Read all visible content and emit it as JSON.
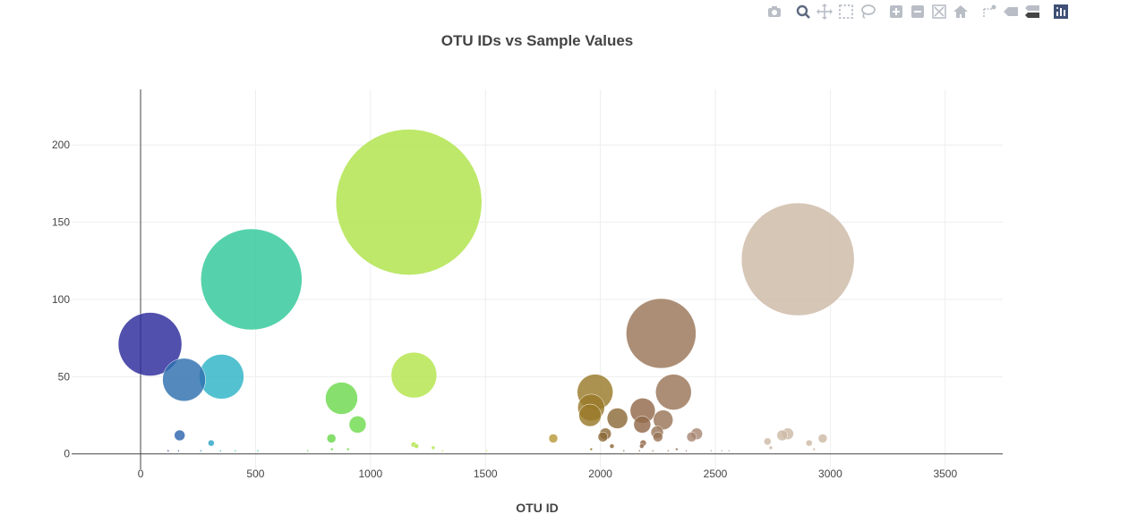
{
  "modebar": {
    "buttons": [
      {
        "icon": "camera-icon",
        "label": "Download plot as a png"
      },
      {
        "icon": "zoom-icon",
        "label": "Zoom",
        "active": true
      },
      {
        "icon": "pan-icon",
        "label": "Pan"
      },
      {
        "icon": "box-select-icon",
        "label": "Box Select"
      },
      {
        "icon": "lasso-select-icon",
        "label": "Lasso Select"
      },
      {
        "icon": "zoom-in-icon",
        "label": "Zoom in"
      },
      {
        "icon": "zoom-out-icon",
        "label": "Zoom out"
      },
      {
        "icon": "autoscale-icon",
        "label": "Autoscale"
      },
      {
        "icon": "home-icon",
        "label": "Reset axes"
      },
      {
        "icon": "spike-lines-icon",
        "label": "Toggle Spike Lines"
      },
      {
        "icon": "hover-closest-icon",
        "label": "Show closest data on hover"
      },
      {
        "icon": "hover-compare-icon",
        "label": "Compare data on hover"
      },
      {
        "icon": "plotly-logo-icon",
        "label": "Produced with Plotly"
      }
    ]
  },
  "colors": {
    "grid": "#eeeeee",
    "axis": "#444444",
    "icon": "#b9bec6",
    "icon_active": "#5e6a80"
  },
  "chart_data": {
    "type": "scatter",
    "mode": "bubble",
    "title": "OTU IDs vs Sample Values",
    "xlabel": "OTU ID",
    "ylabel": "",
    "xlim": [
      -300,
      3750
    ],
    "ylim": [
      -10,
      236
    ],
    "xticks": [
      0,
      500,
      1000,
      1500,
      2000,
      2500,
      3000,
      3500
    ],
    "yticks": [
      0,
      50,
      100,
      150,
      200
    ],
    "grid": true,
    "legend": "none",
    "marker_size_encodes": "sample value",
    "points": [
      {
        "x": 41,
        "y": 71,
        "color": "#2b2a9a"
      },
      {
        "x": 189,
        "y": 48,
        "color": "#2e6fb0"
      },
      {
        "x": 352,
        "y": 50,
        "color": "#2db3c6"
      },
      {
        "x": 482,
        "y": 113,
        "color": "#2fc898"
      },
      {
        "x": 170,
        "y": 12,
        "color": "#2e64ad"
      },
      {
        "x": 307,
        "y": 7,
        "color": "#2ea3c4"
      },
      {
        "x": 874,
        "y": 36,
        "color": "#6cd94d"
      },
      {
        "x": 944,
        "y": 19,
        "color": "#6fdb4e"
      },
      {
        "x": 830,
        "y": 10,
        "color": "#69d84c"
      },
      {
        "x": 1167,
        "y": 163,
        "color": "#aee348"
      },
      {
        "x": 1189,
        "y": 51,
        "color": "#b3e44a"
      },
      {
        "x": 1795,
        "y": 10,
        "color": "#b8983a"
      },
      {
        "x": 1977,
        "y": 40,
        "color": "#9a7a2a"
      },
      {
        "x": 1960,
        "y": 30,
        "color": "#9a7a2a"
      },
      {
        "x": 1955,
        "y": 25,
        "color": "#9a7a2a"
      },
      {
        "x": 2011,
        "y": 11,
        "color": "#8c6a38"
      },
      {
        "x": 2022,
        "y": 13,
        "color": "#8c6a38"
      },
      {
        "x": 2074,
        "y": 23,
        "color": "#8c6a38"
      },
      {
        "x": 2184,
        "y": 28,
        "color": "#93694a"
      },
      {
        "x": 2182,
        "y": 19,
        "color": "#93694a"
      },
      {
        "x": 2186,
        "y": 7,
        "color": "#93694a"
      },
      {
        "x": 2180,
        "y": 5,
        "color": "#93694a"
      },
      {
        "x": 2264,
        "y": 78,
        "color": "#9a7558"
      },
      {
        "x": 2318,
        "y": 40,
        "color": "#9a7558"
      },
      {
        "x": 2273,
        "y": 22,
        "color": "#9a7558"
      },
      {
        "x": 2247,
        "y": 14,
        "color": "#9a7558"
      },
      {
        "x": 2250,
        "y": 11,
        "color": "#9a7558"
      },
      {
        "x": 2419,
        "y": 13,
        "color": "#a88673"
      },
      {
        "x": 2397,
        "y": 11,
        "color": "#a88673"
      },
      {
        "x": 2859,
        "y": 126,
        "color": "#cdb9a6"
      },
      {
        "x": 2815,
        "y": 13,
        "color": "#cdb9a6"
      },
      {
        "x": 2791,
        "y": 12,
        "color": "#cdb9a6"
      },
      {
        "x": 2727,
        "y": 8,
        "color": "#cdb9a6"
      },
      {
        "x": 2967,
        "y": 10,
        "color": "#cdb9a6"
      },
      {
        "x": 2908,
        "y": 7,
        "color": "#cdb9a6"
      },
      {
        "x": 1188,
        "y": 6,
        "color": "#b3e44a"
      },
      {
        "x": 1200,
        "y": 5,
        "color": "#b3e44a"
      },
      {
        "x": 1273,
        "y": 4,
        "color": "#b3e44a"
      },
      {
        "x": 2050,
        "y": 5,
        "color": "#8c6a38"
      },
      {
        "x": 2741,
        "y": 4,
        "color": "#cdb9a6"
      },
      {
        "x": 832,
        "y": 3,
        "color": "#69d84c"
      },
      {
        "x": 902,
        "y": 3,
        "color": "#6fdb4e"
      },
      {
        "x": 1960,
        "y": 3,
        "color": "#9a7a2a"
      },
      {
        "x": 2332,
        "y": 3,
        "color": "#9a7558"
      },
      {
        "x": 2929,
        "y": 3,
        "color": "#cdb9a6"
      },
      {
        "x": 120,
        "y": 2,
        "color": "#2b2a9a"
      },
      {
        "x": 165,
        "y": 2,
        "color": "#2e64ad"
      },
      {
        "x": 262,
        "y": 2,
        "color": "#2e8fbc"
      },
      {
        "x": 348,
        "y": 2,
        "color": "#2db3c6"
      },
      {
        "x": 412,
        "y": 2,
        "color": "#2fc898"
      },
      {
        "x": 510,
        "y": 2,
        "color": "#2fc898"
      },
      {
        "x": 727,
        "y": 2,
        "color": "#5fd35a"
      },
      {
        "x": 1313,
        "y": 2,
        "color": "#b3e44a"
      },
      {
        "x": 1505,
        "y": 2,
        "color": "#c9d24c"
      },
      {
        "x": 2102,
        "y": 2,
        "color": "#8c6a38"
      },
      {
        "x": 2170,
        "y": 2,
        "color": "#93694a"
      },
      {
        "x": 2228,
        "y": 2,
        "color": "#9a7558"
      },
      {
        "x": 2295,
        "y": 2,
        "color": "#9a7558"
      },
      {
        "x": 2374,
        "y": 2,
        "color": "#a88673"
      },
      {
        "x": 2482,
        "y": 2,
        "color": "#b49a88"
      },
      {
        "x": 2528,
        "y": 2,
        "color": "#bba693"
      },
      {
        "x": 2560,
        "y": 2,
        "color": "#bba693"
      }
    ]
  }
}
